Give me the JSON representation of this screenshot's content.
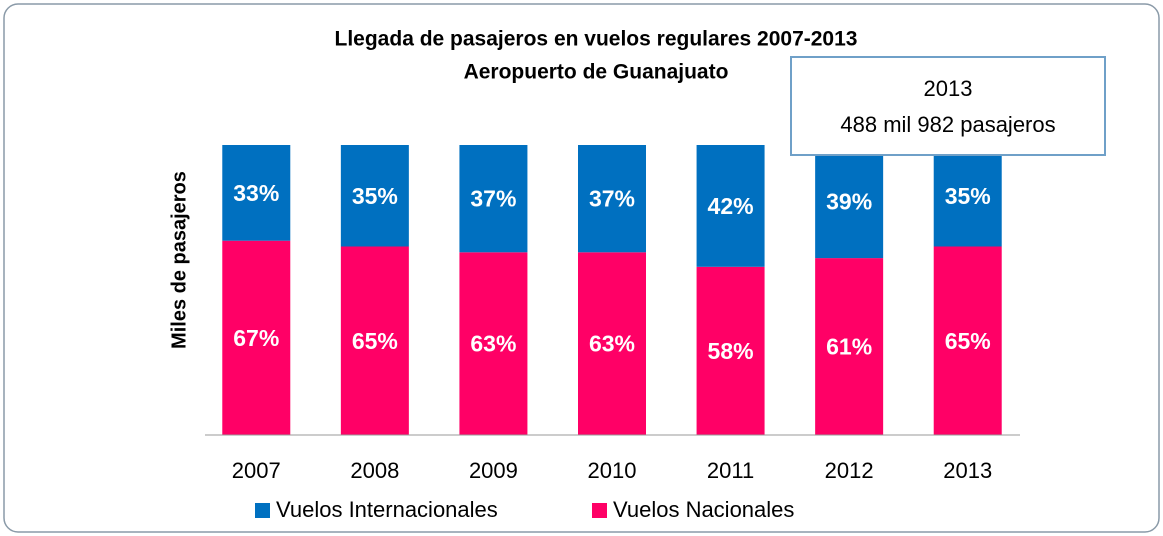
{
  "chart_data": {
    "type": "stacked_bar_100",
    "title": [
      "Llegada de pasajeros en vuelos regulares 2007-2013",
      "Aeropuerto de Guanajuato"
    ],
    "ylabel": "Miles de pasajeros",
    "annotation": [
      "2013",
      "488 mil 982 pasajeros"
    ],
    "categories": [
      "2007",
      "2008",
      "2009",
      "2010",
      "2011",
      "2012",
      "2013"
    ],
    "ylim": [
      0,
      100
    ],
    "series": [
      {
        "name": "Vuelos Internacionales",
        "color": "#0070c0",
        "values": [
          33,
          35,
          37,
          37,
          42,
          39,
          35
        ],
        "value_labels": [
          "33%",
          "35%",
          "37%",
          "37%",
          "42%",
          "39%",
          "35%"
        ]
      },
      {
        "name": "Vuelos Nacionales",
        "color": "#ff0066",
        "values": [
          67,
          65,
          63,
          63,
          58,
          61,
          65
        ],
        "value_labels": [
          "67%",
          "65%",
          "63%",
          "63%",
          "58%",
          "61%",
          "65%"
        ]
      }
    ]
  }
}
